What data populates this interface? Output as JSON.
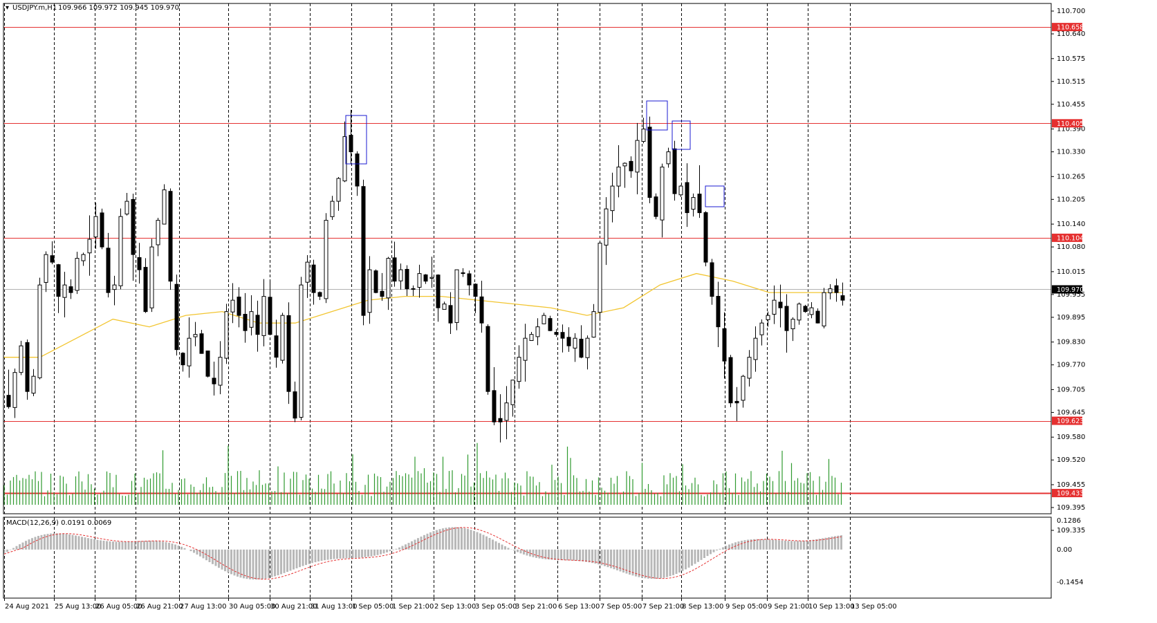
{
  "header": {
    "symbol": "USDJPY.m,H1",
    "ohlc": "109.966 109.972 109.945 109.970"
  },
  "indicator": {
    "label": "MACD(12,26,9) 0.0191 0.0069",
    "axis_labels": [
      "0.1286",
      "0.00",
      "-0.1454"
    ]
  },
  "colors": {
    "background": "#ffffff",
    "grid": "#000000",
    "candle": "#000000",
    "ma": "#f2c530",
    "level": "#e53030",
    "box": "#1a1ad0",
    "volume": "#2e9a2e",
    "macd_hist": "#b8b8b8",
    "macd_signal": "#e53030",
    "current_price_line": "#b0b0b0"
  },
  "price_axis_labels": [
    "110.700",
    "110.640",
    "110.575",
    "110.515",
    "110.455",
    "110.390",
    "110.330",
    "110.265",
    "110.205",
    "110.140",
    "110.080",
    "110.015",
    "109.955",
    "109.895",
    "109.830",
    "109.770",
    "109.705",
    "109.645",
    "109.580",
    "109.520",
    "109.455",
    "109.395",
    "109.335"
  ],
  "time_axis_labels": [
    "24 Aug 2021",
    "25 Aug 13:00",
    "26 Aug 05:00",
    "26 Aug 21:00",
    "27 Aug 13:00",
    "30 Aug 05:00",
    "30 Aug 21:00",
    "31 Aug 13:00",
    "1 Sep 05:00",
    "1 Sep 21:00",
    "2 Sep 13:00",
    "3 Sep 05:00",
    "3 Sep 21:00",
    "6 Sep 13:00",
    "7 Sep 05:00",
    "7 Sep 21:00",
    "8 Sep 13:00",
    "9 Sep 05:00",
    "9 Sep 21:00",
    "10 Sep 13:00",
    "13 Sep 05:00"
  ],
  "price_levels": [
    {
      "label": "110.658",
      "price": 110.658
    },
    {
      "label": "110.405",
      "price": 110.405
    },
    {
      "label": "110.104",
      "price": 110.104
    },
    {
      "label": "109.623",
      "price": 109.623
    },
    {
      "label": "109.433",
      "price": 109.433
    }
  ],
  "current_price": {
    "label": "109.970",
    "price": 109.97
  },
  "chart_data": {
    "type": "candlestick",
    "timeframe": "H1",
    "ylim": [
      109.335,
      110.7
    ],
    "grid": "vertical dashed lines at each time label",
    "closes": [
      109.66,
      109.75,
      109.82,
      109.7,
      109.74,
      109.98,
      110.06,
      110.04,
      109.95,
      109.98,
      109.96,
      110.05,
      110.06,
      110.1,
      110.16,
      110.08,
      109.96,
      109.98,
      110.16,
      110.2,
      110.06,
      110.02,
      109.91,
      110.08,
      110.15,
      110.23,
      109.99,
      109.81,
      109.77,
      109.84,
      109.85,
      109.8,
      109.74,
      109.72,
      109.79,
      109.91,
      109.94,
      109.9,
      109.86,
      109.91,
      109.85,
      109.95,
      109.85,
      109.79,
      109.9,
      109.7,
      109.63,
      109.98,
      110.04,
      109.96,
      109.95,
      110.15,
      110.2,
      110.26,
      110.37,
      110.33,
      110.24,
      109.9,
      110.02,
      109.96,
      109.95,
      110.05,
      109.99,
      110.02,
      109.97,
      109.97,
      110.01,
      109.99,
      110.0,
      109.92,
      109.93,
      109.88,
      110.02,
      110.01,
      109.98,
      109.95,
      109.88,
      109.7,
      109.62,
      109.62,
      109.67,
      109.73,
      109.79,
      109.84,
      109.85,
      109.87,
      109.9,
      109.86,
      109.85,
      109.84,
      109.82,
      109.84,
      109.79,
      109.84,
      109.91,
      110.09,
      110.18,
      110.24,
      110.29,
      110.3,
      110.28,
      110.36,
      110.39,
      110.21,
      110.16,
      110.29,
      110.33,
      110.22,
      110.24,
      110.17,
      110.21,
      110.17,
      110.04,
      109.95,
      109.87,
      109.78,
      109.67,
      109.67,
      109.74,
      109.79,
      109.84,
      109.88,
      109.9,
      109.94,
      109.92,
      109.86,
      109.89,
      109.93,
      109.91,
      109.92,
      109.88,
      109.96,
      109.97,
      109.96,
      109.94
    ],
    "moving_average": [
      109.79,
      109.79,
      109.84,
      109.89,
      109.87,
      109.9,
      109.91,
      109.88,
      109.88,
      109.91,
      109.94,
      109.95,
      109.95,
      109.94,
      109.93,
      109.92,
      109.9,
      109.92,
      109.98,
      110.01,
      109.99,
      109.96,
      109.96,
      109.96
    ],
    "volume_visible_only": true,
    "macd": {
      "name": "MACD(12,26,9)",
      "main": 0.0191,
      "signal": 0.0069,
      "range": [
        -0.1454,
        0.1286
      ]
    }
  }
}
